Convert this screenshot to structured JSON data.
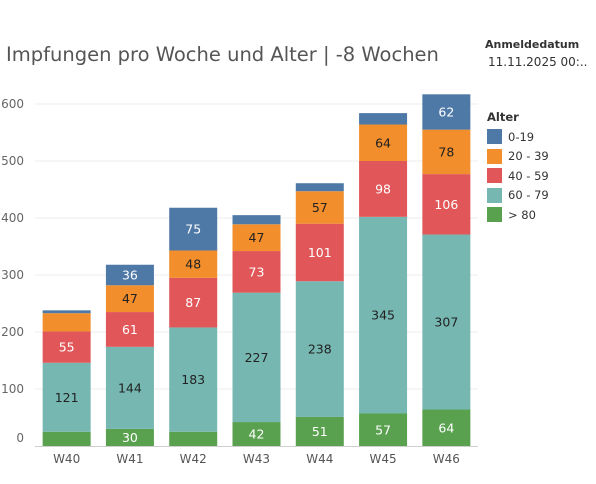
{
  "header": {
    "title": "Impfungen pro Woche und Alter | -8 Wochen",
    "filter_label": "Anmeldedatum",
    "filter_value": "11.11.2025 00:.."
  },
  "legend": {
    "title": "Alter"
  },
  "chart_data": {
    "type": "bar",
    "stacked": true,
    "categories": [
      "W40",
      "W41",
      "W42",
      "W43",
      "W44",
      "W45",
      "W46"
    ],
    "ylim": [
      0,
      640
    ],
    "yticks": [
      0,
      100,
      200,
      300,
      400,
      500,
      600
    ],
    "grid": true,
    "legend_position": "right",
    "series": [
      {
        "name": "> 80",
        "color": "#59a14f",
        "values": [
          25,
          30,
          25,
          42,
          51,
          57,
          64
        ],
        "labels": [
          "",
          "30",
          "",
          "42",
          "51",
          "57",
          "64"
        ]
      },
      {
        "name": "60 - 79",
        "color": "#76b7b2",
        "values": [
          121,
          144,
          183,
          227,
          238,
          345,
          307
        ],
        "labels": [
          "121",
          "144",
          "183",
          "227",
          "238",
          "345",
          "307"
        ]
      },
      {
        "name": "40 - 59",
        "color": "#e15759",
        "values": [
          55,
          61,
          87,
          73,
          101,
          98,
          106
        ],
        "labels": [
          "55",
          "61",
          "87",
          "73",
          "101",
          "98",
          "106"
        ]
      },
      {
        "name": "20 - 39",
        "color": "#f28e2b",
        "values": [
          32,
          47,
          48,
          47,
          57,
          64,
          78
        ],
        "labels": [
          "",
          "47",
          "48",
          "47",
          "57",
          "64",
          "78"
        ]
      },
      {
        "name": "0-19",
        "color": "#4e79a7",
        "values": [
          5,
          36,
          75,
          16,
          14,
          20,
          62
        ],
        "labels": [
          "",
          "36",
          "75",
          "",
          "",
          "",
          "62"
        ]
      }
    ],
    "legend_order": [
      "0-19",
      "20 - 39",
      "40 - 59",
      "60 - 79",
      "> 80"
    ]
  }
}
